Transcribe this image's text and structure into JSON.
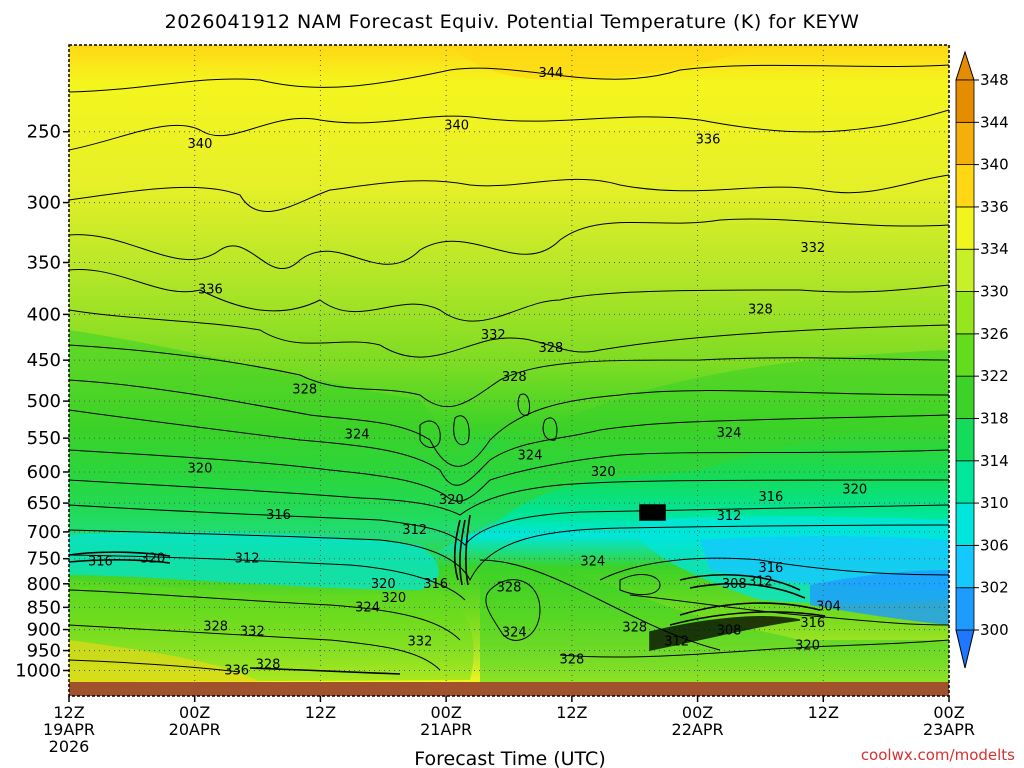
{
  "chart_data": {
    "type": "heatmap",
    "title": "2026041912 NAM Forecast Equiv. Potential Temperature (K) for KEYW",
    "xlabel": "Forecast Time (UTC)",
    "y_axis": {
      "ticks": [
        250,
        300,
        350,
        400,
        450,
        500,
        550,
        600,
        650,
        700,
        750,
        800,
        850,
        900,
        950,
        1000
      ],
      "range": [
        200,
        1030
      ],
      "inverted": true,
      "scale": "log-pressure"
    },
    "x_axis": {
      "range_hours": [
        0,
        84
      ],
      "ticks": [
        {
          "hour": 0,
          "label1": "12Z",
          "label2": "19APR",
          "label3": "2026"
        },
        {
          "hour": 12,
          "label1": "00Z",
          "label2": "20APR",
          "label3": ""
        },
        {
          "hour": 24,
          "label1": "12Z",
          "label2": "",
          "label3": ""
        },
        {
          "hour": 36,
          "label1": "00Z",
          "label2": "21APR",
          "label3": ""
        },
        {
          "hour": 48,
          "label1": "12Z",
          "label2": "",
          "label3": ""
        },
        {
          "hour": 60,
          "label1": "00Z",
          "label2": "22APR",
          "label3": ""
        },
        {
          "hour": 72,
          "label1": "12Z",
          "label2": "",
          "label3": ""
        },
        {
          "hour": 84,
          "label1": "00Z",
          "label2": "23APR",
          "label3": ""
        }
      ]
    },
    "colorbar": {
      "levels": [
        300,
        302,
        306,
        310,
        314,
        318,
        322,
        326,
        330,
        334,
        336,
        340,
        344,
        348
      ],
      "colors": [
        "#1e78ff",
        "#1e9bff",
        "#15c8ff",
        "#00e6dc",
        "#00e69b",
        "#14dc5a",
        "#3cd228",
        "#64dc1e",
        "#96e61e",
        "#c8f028",
        "#f0f51e",
        "#ffd714",
        "#f5af0a",
        "#e68c00"
      ]
    },
    "contour_labels": [
      {
        "value": 344,
        "hour": 46,
        "p": 215
      },
      {
        "value": 340,
        "hour": 12.5,
        "p": 258
      },
      {
        "value": 340,
        "hour": 37,
        "p": 246
      },
      {
        "value": 336,
        "hour": 61,
        "p": 255
      },
      {
        "value": 332,
        "hour": 71,
        "p": 337
      },
      {
        "value": 336,
        "hour": 13.5,
        "p": 375
      },
      {
        "value": 328,
        "hour": 66,
        "p": 395
      },
      {
        "value": 332,
        "hour": 40.5,
        "p": 422
      },
      {
        "value": 328,
        "hour": 46,
        "p": 436
      },
      {
        "value": 328,
        "hour": 22.5,
        "p": 485
      },
      {
        "value": 328,
        "hour": 42.5,
        "p": 470
      },
      {
        "value": 324,
        "hour": 27.5,
        "p": 545
      },
      {
        "value": 324,
        "hour": 44,
        "p": 575
      },
      {
        "value": 324,
        "hour": 63,
        "p": 543
      },
      {
        "value": 320,
        "hour": 12.5,
        "p": 595
      },
      {
        "value": 320,
        "hour": 51,
        "p": 600
      },
      {
        "value": 320,
        "hour": 36.5,
        "p": 645
      },
      {
        "value": 320,
        "hour": 75,
        "p": 628
      },
      {
        "value": 316,
        "hour": 20,
        "p": 670
      },
      {
        "value": 316,
        "hour": 67,
        "p": 640
      },
      {
        "value": 312,
        "hour": 33,
        "p": 697
      },
      {
        "value": 312,
        "hour": 63,
        "p": 672
      },
      {
        "value": 316,
        "hour": 3,
        "p": 755
      },
      {
        "value": 320,
        "hour": 8,
        "p": 750
      },
      {
        "value": 312,
        "hour": 17,
        "p": 750
      },
      {
        "value": 324,
        "hour": 50,
        "p": 755
      },
      {
        "value": 316,
        "hour": 67,
        "p": 768
      },
      {
        "value": 320,
        "hour": 30,
        "p": 800
      },
      {
        "value": 316,
        "hour": 35,
        "p": 800
      },
      {
        "value": 308,
        "hour": 63.5,
        "p": 800
      },
      {
        "value": 312,
        "hour": 66,
        "p": 795
      },
      {
        "value": 328,
        "hour": 42,
        "p": 808
      },
      {
        "value": 320,
        "hour": 31,
        "p": 830
      },
      {
        "value": 324,
        "hour": 28.5,
        "p": 850
      },
      {
        "value": 304,
        "hour": 72.5,
        "p": 848
      },
      {
        "value": 316,
        "hour": 71,
        "p": 885
      },
      {
        "value": 328,
        "hour": 14,
        "p": 893
      },
      {
        "value": 332,
        "hour": 17.5,
        "p": 905
      },
      {
        "value": 324,
        "hour": 42.5,
        "p": 907
      },
      {
        "value": 328,
        "hour": 54,
        "p": 895
      },
      {
        "value": 308,
        "hour": 63,
        "p": 902
      },
      {
        "value": 332,
        "hour": 33.5,
        "p": 928
      },
      {
        "value": 312,
        "hour": 58,
        "p": 928
      },
      {
        "value": 320,
        "hour": 70.5,
        "p": 938
      },
      {
        "value": 328,
        "hour": 48,
        "p": 972
      },
      {
        "value": 328,
        "hour": 19,
        "p": 985
      },
      {
        "value": 336,
        "hour": 16,
        "p": 1000
      }
    ]
  },
  "credit": "coolwx.com/modelts"
}
